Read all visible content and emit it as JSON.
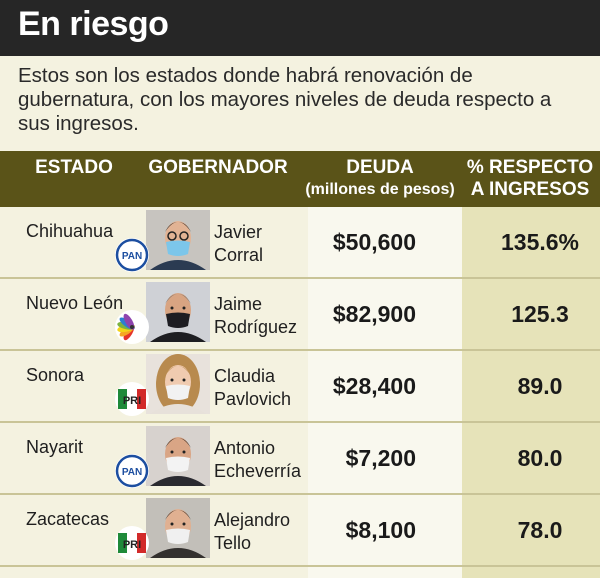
{
  "header": {
    "title": "En riesgo",
    "intro": "Estos son los estados donde habrá renovación de gubernatura, con los mayores niveles de deuda respecto a sus ingresos."
  },
  "columns": {
    "estado": "ESTADO",
    "gobernador": "GOBERNADOR",
    "deuda": "DEUDA",
    "deuda_sub": "(millones de pesos)",
    "pct_line1": "% RESPECTO",
    "pct_line2": "A INGRESOS"
  },
  "colors": {
    "header_band": "#262626",
    "column_header": "#5a5318",
    "pan_blue": "#1c4ea0",
    "pri_green": "#1f8a3a",
    "pri_red": "#d22a2a"
  },
  "chart_data": {
    "type": "table",
    "title": "En riesgo",
    "columns": [
      "ESTADO",
      "GOBERNADOR",
      "DEUDA (millones de pesos)",
      "% RESPECTO A INGRESOS"
    ],
    "rows": [
      {
        "estado": "Chihuahua",
        "nombre_1": "Javier",
        "nombre_2": "Corral",
        "partido": "PAN",
        "logo": "pan-logo-icon",
        "deuda": "$50,600",
        "pct": "135.6%"
      },
      {
        "estado": "Nuevo León",
        "nombre_1": "Jaime",
        "nombre_2": "Rodríguez",
        "partido": "Independiente",
        "logo": "independent-butterfly-logo-icon",
        "deuda": "$82,900",
        "pct": "125.3"
      },
      {
        "estado": "Sonora",
        "nombre_1": "Claudia",
        "nombre_2": "Pavlovich",
        "partido": "PRI",
        "logo": "pri-logo-icon",
        "deuda": "$28,400",
        "pct": "89.0"
      },
      {
        "estado": "Nayarit",
        "nombre_1": "Antonio",
        "nombre_2": "Echeverría",
        "partido": "PAN",
        "logo": "pan-logo-icon",
        "deuda": "$7,200",
        "pct": "80.0"
      },
      {
        "estado": "Zacatecas",
        "nombre_1": "Alejandro",
        "nombre_2": "Tello",
        "partido": "PRI",
        "logo": "pri-logo-icon",
        "deuda": "$8,100",
        "pct": "78.0"
      }
    ]
  }
}
